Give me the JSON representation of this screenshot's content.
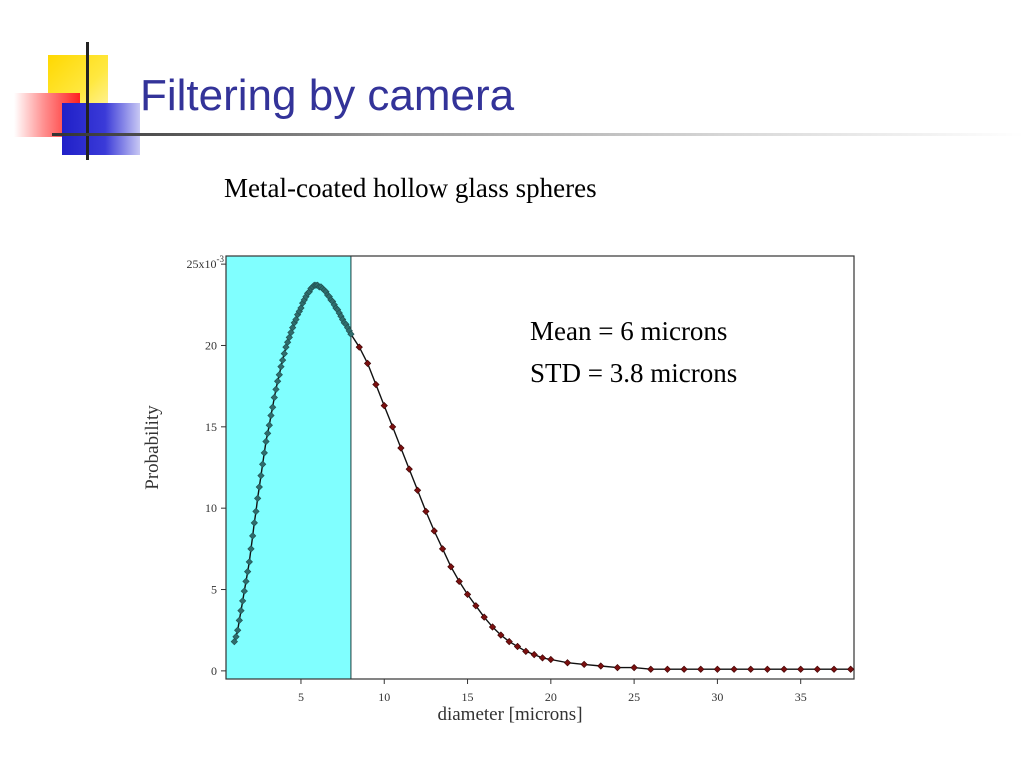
{
  "slide": {
    "title": "Filtering by camera",
    "subtitle": "Metal-coated hollow glass spheres"
  },
  "stats": {
    "mean": "Mean = 6 microns",
    "std": "STD = 3.8 microns"
  },
  "colors": {
    "title": "#333399",
    "highlight_fill": "#80ffff",
    "in_band_marker": "#2f6d6d",
    "out_band_marker": "#7a1010",
    "curve": "#111111"
  },
  "chart_data": {
    "type": "line",
    "xlabel": "diameter [microns]",
    "ylabel": "Probability",
    "y_exponent_label": "25x10",
    "y_exponent_sup": "-3",
    "xlim": [
      0.5,
      38.2
    ],
    "ylim": [
      -0.0005,
      0.0255
    ],
    "xticks": [
      5,
      10,
      15,
      20,
      25,
      30,
      35
    ],
    "yticks": [
      0,
      0.005,
      0.01,
      0.015,
      0.02,
      0.025
    ],
    "ytick_labels": [
      "0",
      "5",
      "10",
      "15",
      "20",
      "25x10"
    ],
    "highlight_range": [
      0.5,
      8
    ],
    "series": [
      {
        "x": [
          1.0,
          1.1,
          1.2,
          1.3,
          1.4,
          1.5,
          1.6,
          1.7,
          1.8,
          1.9,
          2.0,
          2.1,
          2.2,
          2.3,
          2.4,
          2.5,
          2.6,
          2.7,
          2.8,
          2.9,
          3.0,
          3.1,
          3.2,
          3.3,
          3.4,
          3.5,
          3.6,
          3.7,
          3.8,
          3.9,
          4.0,
          4.1,
          4.2,
          4.3,
          4.4,
          4.5,
          4.6,
          4.7,
          4.8,
          4.9,
          5.0,
          5.1,
          5.2,
          5.3,
          5.4,
          5.5,
          5.6,
          5.7,
          5.8,
          5.9,
          6.0,
          6.1,
          6.2,
          6.3,
          6.4,
          6.5,
          6.6,
          6.7,
          6.8,
          6.9,
          7.0,
          7.1,
          7.2,
          7.3,
          7.4,
          7.5,
          7.6,
          7.7,
          7.8,
          7.9,
          8.0,
          8.5,
          9.0,
          9.5,
          10.0,
          10.5,
          11.0,
          11.5,
          12.0,
          12.5,
          13.0,
          13.5,
          14.0,
          14.5,
          15.0,
          15.5,
          16.0,
          16.5,
          17.0,
          17.5,
          18.0,
          18.5,
          19.0,
          19.5,
          20.0,
          21.0,
          22.0,
          23.0,
          24.0,
          25.0,
          26.0,
          27.0,
          28.0,
          29.0,
          30.0,
          31.0,
          32.0,
          33.0,
          34.0,
          35.0,
          36.0,
          37.0,
          38.0
        ],
        "y": [
          0.0018,
          0.0021,
          0.0025,
          0.0031,
          0.0037,
          0.0043,
          0.0049,
          0.0055,
          0.0061,
          0.0067,
          0.0075,
          0.0083,
          0.0091,
          0.0098,
          0.0106,
          0.0113,
          0.012,
          0.0127,
          0.0134,
          0.0141,
          0.0146,
          0.0151,
          0.0157,
          0.0162,
          0.0168,
          0.0173,
          0.0178,
          0.0182,
          0.0187,
          0.0191,
          0.0195,
          0.0199,
          0.0202,
          0.0205,
          0.0208,
          0.0211,
          0.0214,
          0.0216,
          0.0219,
          0.0221,
          0.0223,
          0.0226,
          0.0228,
          0.023,
          0.0232,
          0.0233,
          0.0235,
          0.0236,
          0.0237,
          0.0237,
          0.0237,
          0.0236,
          0.0236,
          0.0235,
          0.0234,
          0.0233,
          0.0231,
          0.023,
          0.0228,
          0.0227,
          0.0225,
          0.0223,
          0.0222,
          0.022,
          0.0218,
          0.0216,
          0.0214,
          0.0213,
          0.0211,
          0.0209,
          0.0207,
          0.0199,
          0.0189,
          0.0176,
          0.0163,
          0.015,
          0.0137,
          0.0124,
          0.0111,
          0.0098,
          0.0086,
          0.0075,
          0.0064,
          0.0055,
          0.0047,
          0.004,
          0.0033,
          0.0027,
          0.0022,
          0.0018,
          0.0015,
          0.0012,
          0.001,
          0.0008,
          0.0007,
          0.0005,
          0.0004,
          0.0003,
          0.0002,
          0.0002,
          0.0001,
          0.0001,
          0.0001,
          0.0001,
          0.0001,
          0.0001,
          0.0001,
          0.0001,
          0.0001,
          0.0001,
          0.0001,
          0.0001,
          0.0001
        ]
      }
    ]
  }
}
